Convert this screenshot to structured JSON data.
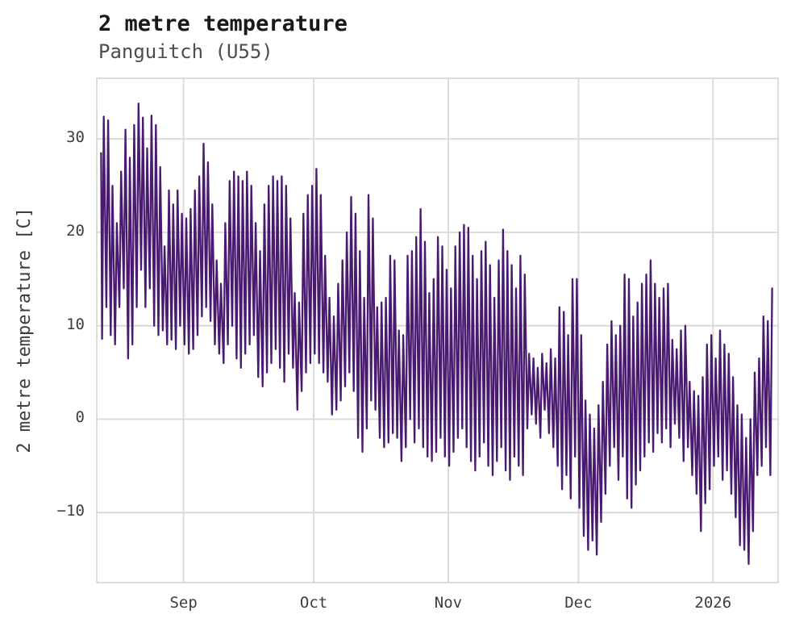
{
  "chart_data": {
    "type": "line",
    "title": "2 metre temperature",
    "subtitle": "Panguitch (U55)",
    "ylabel": "2 metre temperature [C]",
    "xlabel": "",
    "line_color": "#4a1a70",
    "grid_color": "#d8d8d8",
    "frame_color": "#cfcfcf",
    "tick_color": "#3d3d3d",
    "grid": true,
    "legend": "none",
    "ylim": [
      -17.5,
      36.5
    ],
    "yticks": [
      30,
      20,
      10,
      0,
      -10
    ],
    "x_axis": {
      "total_days": 157,
      "ticks": [
        {
          "day": 20,
          "label": "Sep"
        },
        {
          "day": 50,
          "label": "Oct"
        },
        {
          "day": 81,
          "label": "Nov"
        },
        {
          "day": 111,
          "label": "Dec"
        },
        {
          "day": 142,
          "label": "2026"
        }
      ]
    },
    "series": [
      {
        "name": "2 metre temperature",
        "sampling": "estimated daily min/max pairs forming the diurnal zigzag",
        "day_offset": 1,
        "lead_value": 28.5,
        "daily_max": [
          32.4,
          32.0,
          25.0,
          21.0,
          26.5,
          31.0,
          28.0,
          31.5,
          33.8,
          32.3,
          29.0,
          32.5,
          31.5,
          27.0,
          18.5,
          24.5,
          23.0,
          24.5,
          22.0,
          21.5,
          22.5,
          24.5,
          26.0,
          29.5,
          27.5,
          23.0,
          17.0,
          14.5,
          21.0,
          25.5,
          26.5,
          26.0,
          25.5,
          26.5,
          25.0,
          21.0,
          18.0,
          23.0,
          25.0,
          26.0,
          25.5,
          26.0,
          25.0,
          21.5,
          13.5,
          12.5,
          22.0,
          24.0,
          25.0,
          26.8,
          24.0,
          17.5,
          13.0,
          11.0,
          14.5,
          17.0,
          20.0,
          23.8,
          22.0,
          18.0,
          13.0,
          24.0,
          21.5,
          12.0,
          12.5,
          13.0,
          17.5,
          17.0,
          9.5,
          9.0,
          17.5,
          18.0,
          19.5,
          22.5,
          19.0,
          13.5,
          15.0,
          19.5,
          18.5,
          16.0,
          14.0,
          18.5,
          20.0,
          20.8,
          20.5,
          17.5,
          15.0,
          18.0,
          19.0,
          16.5,
          13.0,
          17.0,
          20.3,
          18.0,
          16.5,
          14.0,
          17.5,
          15.5,
          7.0,
          6.5,
          5.5,
          7.0,
          6.0,
          7.5,
          6.5,
          12.0,
          11.5,
          9.0,
          15.0,
          15.0,
          9.0,
          2.0,
          0.5,
          -1.0,
          1.5,
          4.0,
          8.0,
          10.5,
          9.0,
          10.0,
          15.5,
          15.0,
          11.0,
          12.5,
          14.5,
          15.5,
          17.0,
          14.5,
          13.0,
          14.0,
          14.5,
          8.5,
          7.5,
          9.5,
          10.0,
          4.0,
          3.0,
          2.5,
          4.5,
          8.0,
          9.0,
          6.5,
          9.5,
          8.0,
          7.0,
          4.5,
          1.5,
          0.5,
          -2.0,
          0.0,
          5.0,
          6.5,
          11.0,
          10.5,
          14.0
        ],
        "daily_min": [
          8.6,
          12.0,
          9.0,
          8.0,
          12.0,
          14.0,
          6.5,
          8.0,
          12.0,
          16.0,
          12.0,
          14.0,
          10.0,
          9.0,
          9.5,
          8.0,
          8.5,
          7.5,
          10.0,
          8.0,
          7.0,
          7.5,
          9.0,
          11.0,
          12.0,
          10.5,
          8.0,
          7.0,
          6.0,
          8.0,
          10.0,
          6.5,
          5.5,
          7.0,
          8.0,
          9.0,
          4.5,
          3.5,
          5.0,
          6.0,
          7.5,
          5.5,
          4.0,
          7.0,
          5.5,
          1.0,
          3.0,
          5.0,
          6.0,
          7.0,
          6.0,
          5.0,
          4.0,
          0.5,
          1.0,
          2.0,
          3.5,
          5.0,
          3.0,
          -2.0,
          -3.5,
          -1.0,
          2.0,
          1.0,
          -2.0,
          -3.0,
          -2.5,
          -1.5,
          -2.0,
          -4.5,
          -3.0,
          0.0,
          -2.5,
          -1.0,
          -3.0,
          -4.0,
          -4.5,
          -3.5,
          -2.0,
          -4.0,
          -5.0,
          -3.5,
          -2.0,
          -1.0,
          -3.0,
          -4.5,
          -5.5,
          -4.0,
          -2.5,
          -5.0,
          -6.0,
          -4.5,
          -3.0,
          -5.5,
          -6.5,
          -4.0,
          -5.0,
          -6.0,
          -1.0,
          0.5,
          -0.5,
          -2.0,
          1.0,
          -1.5,
          -3.0,
          -5.0,
          -7.5,
          -6.0,
          -8.5,
          -4.0,
          -9.5,
          -12.5,
          -14.0,
          -13.0,
          -14.5,
          -11.0,
          -8.0,
          -5.0,
          -3.0,
          -6.5,
          -4.0,
          -8.5,
          -9.5,
          -7.0,
          -5.5,
          -4.0,
          -2.5,
          -3.5,
          -1.5,
          -2.5,
          -1.0,
          -3.0,
          -0.5,
          -2.0,
          -4.5,
          -3.0,
          -6.0,
          -8.0,
          -12.0,
          -9.0,
          -7.5,
          -5.0,
          -4.0,
          -6.5,
          -5.5,
          -8.0,
          -10.5,
          -13.5,
          -14.0,
          -15.5,
          -12.0,
          -6.0,
          -5.0,
          -3.0,
          -6.0
        ]
      }
    ]
  }
}
